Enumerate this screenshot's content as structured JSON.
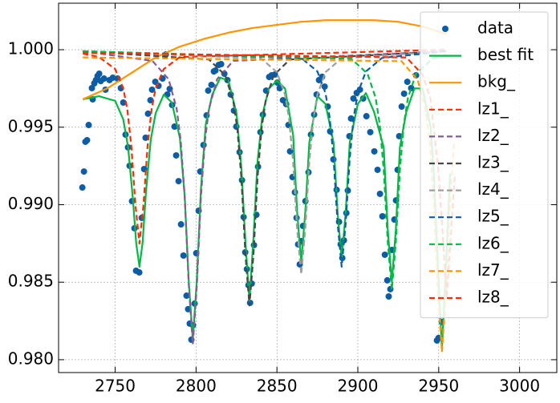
{
  "chart_data": {
    "type": "line",
    "xlim": [
      2715,
      3023
    ],
    "ylim": [
      0.97917,
      1.003
    ],
    "xticks": [
      2750,
      2800,
      2850,
      2900,
      2950,
      3000
    ],
    "yticks": [
      {
        "value": 0.98,
        "label": "0.980"
      },
      0.985,
      {
        "value": 0.99,
        "label": "0.990"
      },
      0.995,
      {
        "value": 1.0,
        "label": "1.000"
      }
    ],
    "grid": true,
    "legend": "upper right",
    "series": [
      {
        "name": "data",
        "color": "#0C5DA5",
        "style": "marker",
        "x": [
          2729.7,
          2730.7,
          2731.6,
          2732.6,
          2733.6,
          2735.6,
          2736.1,
          2737.1,
          2738.1,
          2739.1,
          2740.1,
          2741.1,
          2743.1,
          2744.0,
          2746.5,
          2748.5,
          2751.5,
          2753.5,
          2755.0,
          2756.4,
          2757.9,
          2758.9,
          2760.4,
          2761.9,
          2762.9,
          2764.9,
          2766.4,
          2767.9,
          2768.8,
          2770.3,
          2771.8,
          2772.8,
          2774.8,
          2776.8,
          2779.3,
          2781.3,
          2782.2,
          2783.7,
          2785.2,
          2786.7,
          2787.7,
          2789.2,
          2790.7,
          2792.2,
          2794.1,
          2795.1,
          2796.1,
          2797.1,
          2798.1,
          2799.1,
          2800.1,
          2801.6,
          2802.6,
          2804.6,
          2806.5,
          2807.5,
          2809.5,
          2811.0,
          2812.0,
          2814.0,
          2815.5,
          2817.5,
          2819.4,
          2821.4,
          2823.4,
          2824.9,
          2826.9,
          2828.4,
          2829.4,
          2830.4,
          2831.4,
          2832.4,
          2833.4,
          2834.4,
          2835.8,
          2837.3,
          2838.3,
          2839.8,
          2841.3,
          2843.3,
          2845.2,
          2846.7,
          2848.7,
          2850.2,
          2851.7,
          2853.7,
          2855.7,
          2857.1,
          2858.1,
          2859.6,
          2861.1,
          2862.1,
          2863.1,
          2864.1,
          2865.1,
          2866.1,
          2867.6,
          2869.5,
          2871.0,
          2873.0,
          2874.5,
          2876.0,
          2877.9,
          2879.5,
          2881.4,
          2882.9,
          2884.9,
          2886.9,
          2888.4,
          2889.4,
          2890.4,
          2891.4,
          2892.9,
          2893.8,
          2894.8,
          2895.8,
          2897.3,
          2899.3,
          2901.3,
          2903.3,
          2905.3,
          2907.7,
          2910.2,
          2912.2,
          2913.7,
          2915.2,
          2916.7,
          2918.2,
          2919.1,
          2920.1,
          2921.1,
          2922.6,
          2923.6,
          2924.6,
          2925.6,
          2927.1,
          2928.6,
          2930.6,
          2933.0,
          2936.0,
          2948.9,
          2949.9,
          2951.9
        ],
        "values": [
          0.99111,
          0.99214,
          0.99406,
          0.99416,
          0.99514,
          0.99752,
          0.9968,
          0.99783,
          0.99804,
          0.9983,
          0.99845,
          0.99798,
          0.99814,
          0.99742,
          0.99804,
          0.99819,
          0.99814,
          0.99752,
          0.99659,
          0.99452,
          0.9937,
          0.99251,
          0.99023,
          0.98848,
          0.98574,
          0.98563,
          0.98915,
          0.9923,
          0.99432,
          0.99587,
          0.99674,
          0.99742,
          0.99793,
          0.99767,
          0.99814,
          0.99969,
          0.99711,
          0.99747,
          0.99643,
          0.99504,
          0.99318,
          0.99152,
          0.98873,
          0.98672,
          0.98413,
          0.98326,
          0.98233,
          0.98129,
          0.98222,
          0.98362,
          0.98687,
          0.98961,
          0.99214,
          0.99385,
          0.99576,
          0.99736,
          0.99773,
          0.9986,
          0.99866,
          0.99902,
          0.99907,
          0.99845,
          0.99804,
          0.99711,
          0.99607,
          0.99504,
          0.99339,
          0.99158,
          0.9892,
          0.98693,
          0.98584,
          0.98481,
          0.98367,
          0.98491,
          0.98739,
          0.98935,
          0.99245,
          0.99468,
          0.99581,
          0.99736,
          0.99824,
          0.99835,
          0.9984,
          0.99788,
          0.99752,
          0.99674,
          0.99649,
          0.99514,
          0.99344,
          0.99178,
          0.9908,
          0.98915,
          0.98744,
          0.98615,
          0.98765,
          0.98863,
          0.99023,
          0.99209,
          0.99452,
          0.99581,
          0.99711,
          0.99804,
          0.99825,
          0.99762,
          0.99633,
          0.99473,
          0.99292,
          0.99096,
          0.98889,
          0.98744,
          0.98656,
          0.9877,
          0.98946,
          0.99091,
          0.99442,
          0.99556,
          0.99685,
          0.99721,
          0.99742,
          0.99685,
          0.99571,
          0.99468,
          0.99344,
          0.99225,
          0.9907,
          0.98925,
          0.98677,
          0.98512,
          0.98408,
          0.98455,
          0.98708,
          0.98904,
          0.99028,
          0.99225,
          0.99442,
          0.99633,
          0.99716,
          0.99793,
          0.99752,
          0.99835,
          0.98124,
          0.9814,
          0.98243
        ]
      },
      {
        "name": "best fit",
        "color": "#00B945",
        "style": "solid",
        "x": [
          2730,
          2740,
          2750,
          2755,
          2758,
          2761,
          2763,
          2765,
          2767,
          2769,
          2772,
          2775,
          2780,
          2785,
          2790,
          2793,
          2795.5,
          2798,
          2800.5,
          2803,
          2806,
          2810,
          2815,
          2820,
          2825,
          2828,
          2830.5,
          2833,
          2835.5,
          2838,
          2841,
          2845,
          2850,
          2855,
          2860,
          2862.5,
          2865,
          2867.5,
          2870,
          2875,
          2880,
          2885,
          2887.5,
          2890,
          2892.5,
          2895,
          2900,
          2905,
          2910,
          2916,
          2918.5,
          2921,
          2923.5,
          2926,
          2930,
          2935,
          2940,
          2945,
          2947,
          2949.5,
          2952,
          2954.5,
          2957
        ],
        "values": [
          0.9968,
          0.997,
          0.9967,
          0.9955,
          0.9937,
          0.9903,
          0.9875,
          0.986,
          0.9876,
          0.9908,
          0.9942,
          0.9959,
          0.9971,
          0.9966,
          0.9943,
          0.9905,
          0.985,
          0.9813,
          0.9852,
          0.991,
          0.9952,
          0.9971,
          0.9982,
          0.998,
          0.9959,
          0.9924,
          0.9876,
          0.9838,
          0.9879,
          0.9928,
          0.9958,
          0.9975,
          0.998,
          0.9975,
          0.9945,
          0.9895,
          0.9863,
          0.9895,
          0.994,
          0.997,
          0.9965,
          0.994,
          0.9895,
          0.9865,
          0.9895,
          0.994,
          0.9965,
          0.9972,
          0.996,
          0.9937,
          0.9884,
          0.985,
          0.9884,
          0.9937,
          0.996,
          0.9975,
          0.9975,
          0.995,
          0.992,
          0.986,
          0.9807,
          0.986,
          0.992
        ]
      },
      {
        "name": "bkg_",
        "color": "#FF9500",
        "style": "solid",
        "x": [
          2730,
          2745,
          2760,
          2775,
          2790,
          2805,
          2820,
          2835,
          2850,
          2865,
          2880,
          2895,
          2910,
          2925,
          2940,
          2955
        ],
        "values": [
          0.9968,
          0.9975,
          0.9985,
          0.9995,
          1.0002,
          1.0007,
          1.0011,
          1.0014,
          1.0016,
          1.0018,
          1.0019,
          1.0019,
          1.0019,
          1.0018,
          1.0015,
          1.001
        ]
      },
      {
        "name": "lz1_",
        "color": "#FF2C00",
        "style": "dashed",
        "x": [
          2730,
          2740,
          2750,
          2755,
          2757.5,
          2760,
          2762.5,
          2765,
          2767.5,
          2770,
          2772.5,
          2775,
          2780,
          2790,
          2955
        ],
        "values": [
          0.99975,
          0.99953,
          0.99875,
          0.9975,
          0.99615,
          0.99375,
          0.99,
          0.9875,
          0.99,
          0.99375,
          0.99615,
          0.9975,
          0.99875,
          0.99953,
          1.0
        ]
      },
      {
        "name": "lz2_",
        "color": "#845B97",
        "style": "dashed",
        "x": [
          2730,
          2773,
          2783,
          2788,
          2790.5,
          2793,
          2795.5,
          2798,
          2800.5,
          2803,
          2805.5,
          2808,
          2813,
          2823,
          2955
        ],
        "values": [
          0.9999,
          0.99928,
          0.9981,
          0.9962,
          0.99415,
          0.9905,
          0.9848,
          0.981,
          0.9848,
          0.9905,
          0.99415,
          0.9962,
          0.9981,
          0.99928,
          0.9999
        ]
      },
      {
        "name": "lz3_",
        "color": "#474747",
        "style": "dashed",
        "x": [
          2730,
          2808,
          2818,
          2823,
          2825.5,
          2828,
          2830.5,
          2833,
          2835.5,
          2838,
          2840.5,
          2843,
          2848,
          2858,
          2955
        ],
        "values": [
          0.9999,
          0.99937,
          0.99835,
          0.9967,
          0.99492,
          0.99175,
          0.9868,
          0.9835,
          0.9868,
          0.99175,
          0.99492,
          0.9967,
          0.99835,
          0.99937,
          0.9999
        ]
      },
      {
        "name": "lz4_",
        "color": "#9E9E9E",
        "style": "dashed",
        "x": [
          2730,
          2840,
          2850,
          2855,
          2857.5,
          2860,
          2862.5,
          2865,
          2867.5,
          2870,
          2872.5,
          2875,
          2880,
          2890,
          2955
        ],
        "values": [
          0.9999,
          0.99945,
          0.99855,
          0.9971,
          0.99553,
          0.99275,
          0.9884,
          0.9855,
          0.9884,
          0.99275,
          0.99553,
          0.9971,
          0.99855,
          0.99945,
          0.9999
        ]
      },
      {
        "name": "lz5_",
        "color": "#0C5DA5",
        "style": "dashed",
        "x": [
          2730,
          2865,
          2875,
          2880,
          2882.5,
          2885,
          2887.5,
          2890,
          2892.5,
          2895,
          2897.5,
          2900,
          2905,
          2915,
          2955
        ],
        "values": [
          0.9999,
          0.99947,
          0.9986,
          0.9972,
          0.99569,
          0.993,
          0.9888,
          0.986,
          0.9888,
          0.993,
          0.99569,
          0.9972,
          0.9986,
          0.99947,
          0.9999
        ]
      },
      {
        "name": "lz6_",
        "color": "#00B945",
        "style": "dashed",
        "x": [
          2730,
          2896,
          2906,
          2911,
          2913.5,
          2916,
          2918.5,
          2921,
          2923.5,
          2926,
          2928.5,
          2931,
          2936,
          2946,
          2955
        ],
        "values": [
          0.9999,
          0.99941,
          0.99845,
          0.9969,
          0.99523,
          0.99225,
          0.9876,
          0.9845,
          0.9876,
          0.99225,
          0.99523,
          0.9969,
          0.99845,
          0.99941,
          0.99967
        ]
      },
      {
        "name": "lz7_",
        "color": "#FF9500",
        "style": "dashed",
        "x": [
          2730,
          2927,
          2937,
          2942,
          2944.5,
          2947,
          2949.5,
          2952,
          2954.5,
          2957,
          2959.5
        ],
        "values": [
          0.9995,
          0.99926,
          0.99805,
          0.9961,
          0.994,
          0.99025,
          0.9844,
          0.9805,
          0.9844,
          0.99025,
          0.994
        ]
      },
      {
        "name": "lz8_",
        "color": "#FF2C00",
        "style": "dashed",
        "x": [
          2730,
          2930,
          2940,
          2945,
          2950,
          2955,
          2960
        ],
        "values": [
          0.9998,
          0.9995,
          0.9984,
          0.9968,
          0.992,
          0.984,
          0.992
        ]
      }
    ]
  }
}
